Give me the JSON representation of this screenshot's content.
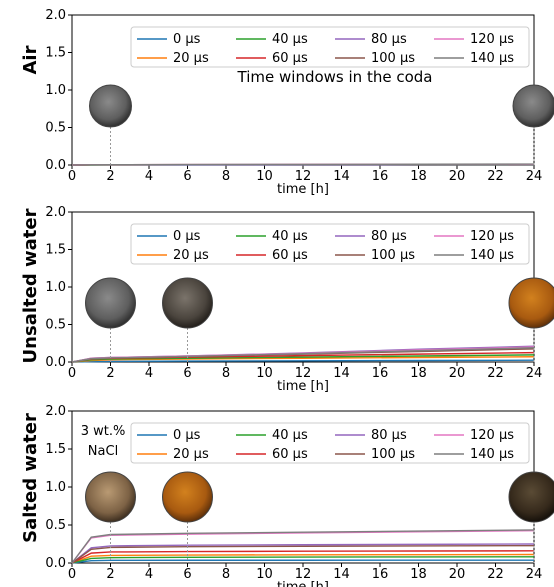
{
  "figure": {
    "xlabel": "time [h]",
    "x_ticks": [
      0,
      2,
      4,
      6,
      8,
      10,
      12,
      14,
      16,
      18,
      20,
      22,
      24
    ],
    "y_ticks": [
      0.0,
      0.5,
      1.0,
      1.5,
      2.0
    ],
    "xlim": [
      0,
      24
    ],
    "ylim": [
      0,
      2.0
    ],
    "colors": {
      "0 µs": "#1f77b4",
      "20 µs": "#ff7f0e",
      "40 µs": "#2ca02c",
      "60 µs": "#d62728",
      "80 µs": "#9467bd",
      "100 µs": "#8c564b",
      "120 µs": "#e377c2",
      "140 µs": "#7f7f7f"
    },
    "legend_position": "top-right",
    "legend_labels": [
      "0 µs",
      "20 µs",
      "40 µs",
      "60 µs",
      "80 µs",
      "100 µs",
      "120 µs",
      "140 µs"
    ]
  },
  "chart_data": [
    {
      "type": "line",
      "ylabel": "Air",
      "annotation": "Time windows in the coda",
      "ylim": [
        0,
        2.0
      ],
      "grid": false,
      "x": [
        0,
        1,
        2,
        6,
        12,
        18,
        24
      ],
      "series": [
        {
          "name": "0 µs",
          "values": [
            0,
            0.0,
            0.0,
            0.0,
            0.0,
            0.0,
            0.0
          ]
        },
        {
          "name": "20 µs",
          "values": [
            0,
            0.001,
            0.001,
            0.002,
            0.003,
            0.004,
            0.005
          ]
        },
        {
          "name": "40 µs",
          "values": [
            0,
            0.001,
            0.002,
            0.003,
            0.004,
            0.005,
            0.006
          ]
        },
        {
          "name": "60 µs",
          "values": [
            0,
            0.002,
            0.003,
            0.004,
            0.005,
            0.006,
            0.007
          ]
        },
        {
          "name": "80 µs",
          "values": [
            0,
            0.002,
            0.003,
            0.004,
            0.006,
            0.007,
            0.008
          ]
        },
        {
          "name": "100 µs",
          "values": [
            0,
            0.002,
            0.003,
            0.005,
            0.006,
            0.008,
            0.009
          ]
        },
        {
          "name": "120 µs",
          "values": [
            0,
            0.003,
            0.004,
            0.005,
            0.007,
            0.009,
            0.01
          ]
        },
        {
          "name": "140 µs",
          "values": [
            0,
            0.003,
            0.004,
            0.006,
            0.008,
            0.01,
            0.012
          ]
        }
      ],
      "sample_photos": [
        {
          "at_hour": 2,
          "tone": "grey"
        },
        {
          "at_hour": 24,
          "tone": "grey"
        }
      ]
    },
    {
      "type": "line",
      "ylabel": "Unsalted water",
      "ylim": [
        0,
        2.0
      ],
      "grid": false,
      "x": [
        0,
        1,
        2,
        6,
        12,
        18,
        24
      ],
      "series": [
        {
          "name": "0 µs",
          "values": [
            0,
            0.005,
            0.008,
            0.012,
            0.016,
            0.02,
            0.024
          ]
        },
        {
          "name": "20 µs",
          "values": [
            0,
            0.02,
            0.03,
            0.04,
            0.05,
            0.06,
            0.07
          ]
        },
        {
          "name": "40 µs",
          "values": [
            0,
            0.03,
            0.04,
            0.05,
            0.065,
            0.08,
            0.095
          ]
        },
        {
          "name": "60 µs",
          "values": [
            0,
            0.04,
            0.05,
            0.065,
            0.085,
            0.105,
            0.125
          ]
        },
        {
          "name": "80 µs",
          "values": [
            0,
            0.05,
            0.06,
            0.08,
            0.12,
            0.17,
            0.21
          ]
        },
        {
          "name": "100 µs",
          "values": [
            0,
            0.045,
            0.055,
            0.075,
            0.105,
            0.14,
            0.175
          ]
        },
        {
          "name": "120 µs",
          "values": [
            0,
            0.05,
            0.06,
            0.08,
            0.115,
            0.16,
            0.2
          ]
        },
        {
          "name": "140 µs",
          "values": [
            0,
            0.045,
            0.055,
            0.075,
            0.11,
            0.15,
            0.19
          ]
        }
      ],
      "sample_photos": [
        {
          "at_hour": 2,
          "tone": "grey"
        },
        {
          "at_hour": 6,
          "tone": "dark"
        },
        {
          "at_hour": 24,
          "tone": "rust"
        }
      ]
    },
    {
      "type": "line",
      "ylabel": "Salted water",
      "annotation": [
        "3 wt.%",
        "NaCl"
      ],
      "ylim": [
        0,
        2.0
      ],
      "grid": false,
      "x": [
        0,
        1,
        2,
        6,
        12,
        18,
        24
      ],
      "series": [
        {
          "name": "0 µs",
          "values": [
            0,
            0.03,
            0.035,
            0.036,
            0.036,
            0.037,
            0.037
          ]
        },
        {
          "name": "20 µs",
          "values": [
            0,
            0.09,
            0.1,
            0.105,
            0.108,
            0.11,
            0.112
          ]
        },
        {
          "name": "40 µs",
          "values": [
            0,
            0.06,
            0.07,
            0.075,
            0.078,
            0.08,
            0.082
          ]
        },
        {
          "name": "60 µs",
          "values": [
            0,
            0.13,
            0.145,
            0.15,
            0.155,
            0.158,
            0.16
          ]
        },
        {
          "name": "80 µs",
          "values": [
            0,
            0.2,
            0.225,
            0.235,
            0.24,
            0.245,
            0.25
          ]
        },
        {
          "name": "100 µs",
          "values": [
            0,
            0.18,
            0.205,
            0.215,
            0.22,
            0.225,
            0.228
          ]
        },
        {
          "name": "120 µs",
          "values": [
            0,
            0.33,
            0.365,
            0.38,
            0.395,
            0.41,
            0.425
          ]
        },
        {
          "name": "140 µs",
          "values": [
            0,
            0.34,
            0.375,
            0.39,
            0.405,
            0.42,
            0.435
          ]
        }
      ],
      "sample_photos": [
        {
          "at_hour": 2,
          "tone": "brown"
        },
        {
          "at_hour": 6,
          "tone": "rust"
        },
        {
          "at_hour": 24,
          "tone": "dark-brown"
        }
      ]
    }
  ]
}
